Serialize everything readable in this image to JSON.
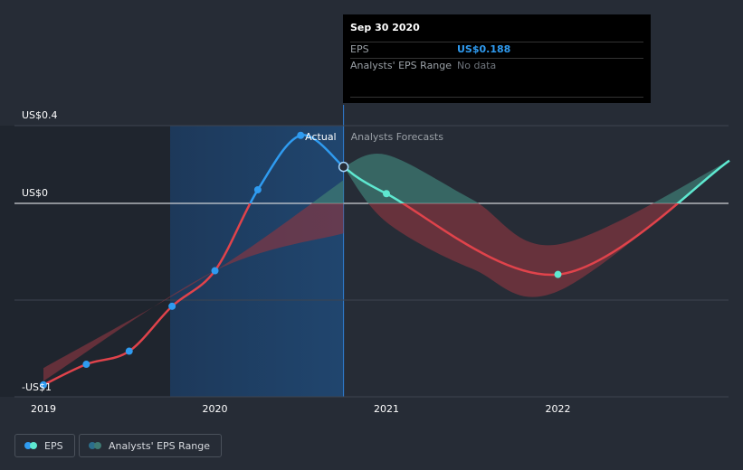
{
  "chart_data": {
    "type": "line",
    "y_axis": {
      "ticks": [
        {
          "label": "US$0.4",
          "value": 0.4
        },
        {
          "label": "US$0",
          "value": 0
        },
        {
          "label": "-US$1",
          "value": -1
        }
      ]
    },
    "x_axis": {
      "ticks": [
        "2019",
        "2020",
        "2021",
        "2022"
      ]
    },
    "section_labels": {
      "actual": "Actual",
      "forecast": "Analysts Forecasts"
    },
    "series": [
      {
        "name": "EPS",
        "color": "#2f9bf0",
        "points": [
          {
            "x": 2019.0,
            "y": -0.97
          },
          {
            "x": 2019.25,
            "y": -0.86
          },
          {
            "x": 2019.5,
            "y": -0.79
          },
          {
            "x": 2019.75,
            "y": -0.55
          },
          {
            "x": 2020.0,
            "y": -0.36
          },
          {
            "x": 2020.25,
            "y": 0.07
          },
          {
            "x": 2020.5,
            "y": 0.35
          },
          {
            "x": 2020.75,
            "y": 0.188
          }
        ]
      },
      {
        "name": "EPS forecast",
        "color": "#5ee8d0",
        "points": [
          {
            "x": 2020.75,
            "y": 0.188
          },
          {
            "x": 2021.0,
            "y": 0.05
          },
          {
            "x": 2022.0,
            "y": -0.38
          },
          {
            "x": 2023.0,
            "y": 0.22
          }
        ]
      }
    ],
    "ranges": [
      {
        "name": "Analysts' EPS Range (past)",
        "upper": [
          {
            "x": 2019.0,
            "y": -0.88
          },
          {
            "x": 2020.0,
            "y": -0.36
          },
          {
            "x": 2020.75,
            "y": 0.12
          }
        ],
        "lower": [
          {
            "x": 2019.0,
            "y": -0.95
          },
          {
            "x": 2020.0,
            "y": -0.36
          },
          {
            "x": 2020.75,
            "y": -0.16
          }
        ]
      },
      {
        "name": "Analysts' EPS Range (forecast)",
        "upper": [
          {
            "x": 2020.75,
            "y": 0.188
          },
          {
            "x": 2021.0,
            "y": 0.25
          },
          {
            "x": 2021.5,
            "y": 0.02
          },
          {
            "x": 2022.0,
            "y": -0.22
          },
          {
            "x": 2023.0,
            "y": 0.22
          }
        ],
        "lower": [
          {
            "x": 2020.75,
            "y": 0.188
          },
          {
            "x": 2021.0,
            "y": -0.1
          },
          {
            "x": 2021.5,
            "y": -0.35
          },
          {
            "x": 2022.0,
            "y": -0.47
          },
          {
            "x": 2023.0,
            "y": 0.22
          }
        ]
      }
    ],
    "highlight_point": {
      "x": 2020.75,
      "y": 0.188
    },
    "colors": {
      "background": "#262c36",
      "eps": "#2f9bf0",
      "forecast": "#5ee8d0",
      "loss": "#e0434b",
      "range": "#3e7a73",
      "actual_shade": "#1c3a5e"
    }
  },
  "tooltip": {
    "date": "Sep 30 2020",
    "rows": [
      {
        "label": "EPS",
        "value": "US$0.188"
      },
      {
        "label": "Analysts' EPS Range",
        "value": "No data"
      }
    ]
  },
  "legend": [
    {
      "label": "EPS",
      "colors": [
        "#2f9bf0",
        "#5ee8d0"
      ]
    },
    {
      "label": "Analysts' EPS Range",
      "colors": [
        "#2b6e8c",
        "#3e7a73"
      ]
    }
  ]
}
